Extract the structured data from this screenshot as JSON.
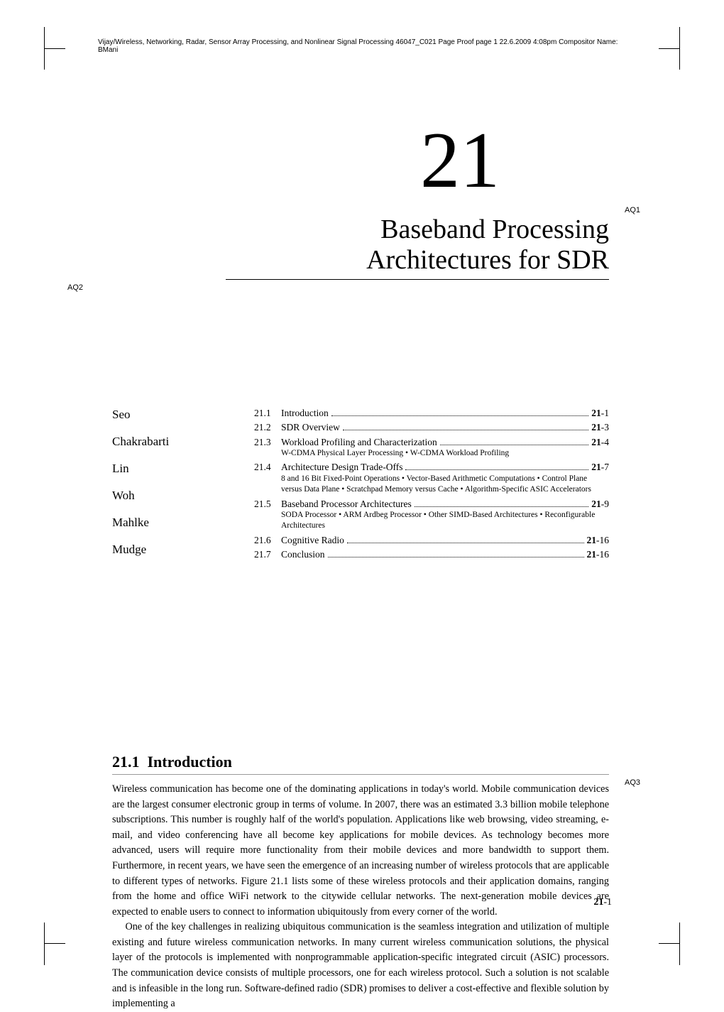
{
  "runningHead": "Vijay/Wireless, Networking, Radar, Sensor Array Processing, and Nonlinear Signal Processing   46047_C021   Page Proof   page 1   22.6.2009   4:08pm   Compositor Name: BMani",
  "chapter": {
    "number": "21",
    "titleLine1": "Baseband Processing",
    "titleLine2": "Architectures for SDR"
  },
  "aq": {
    "aq1": "AQ1",
    "aq2": "AQ2",
    "aq3": "AQ3"
  },
  "authors": [
    "Seo",
    "Chakrabarti",
    "Lin",
    "Woh",
    "Mahlke",
    "Mudge"
  ],
  "toc": [
    {
      "num": "21.1",
      "title": "Introduction",
      "page": "21-1",
      "sub": ""
    },
    {
      "num": "21.2",
      "title": "SDR Overview",
      "page": "21-3",
      "sub": ""
    },
    {
      "num": "21.3",
      "title": "Workload Profiling and Characterization",
      "page": "21-4",
      "sub": "W-CDMA Physical Layer Processing  •  W-CDMA Workload Profiling"
    },
    {
      "num": "21.4",
      "title": "Architecture Design Trade-Offs",
      "page": "21-7",
      "sub": "8 and 16 Bit Fixed-Point Operations  •  Vector-Based Arithmetic Computations  •  Control Plane versus Data Plane  •  Scratchpad Memory versus Cache  •  Algorithm-Specific ASIC Accelerators"
    },
    {
      "num": "21.5",
      "title": "Baseband Processor Architectures",
      "page": "21-9",
      "sub": "SODA Processor  •  ARM Ardbeg Processor  •  Other SIMD-Based Architectures  •  Reconfigurable Architectures"
    },
    {
      "num": "21.6",
      "title": "Cognitive Radio",
      "page": "21-16",
      "sub": ""
    },
    {
      "num": "21.7",
      "title": "Conclusion",
      "page": "21-16",
      "sub": ""
    }
  ],
  "section": {
    "num": "21.1",
    "title": "Introduction"
  },
  "para1": "Wireless communication has become one of the dominating applications in today's world. Mobile communication devices are the largest consumer electronic group in terms of volume. In 2007, there was an estimated 3.3 billion mobile telephone subscriptions. This number is roughly half of the world's population. Applications like web browsing, video streaming, e-mail, and video conferencing have all become key applications for mobile devices. As technology becomes more advanced, users will require more functionality from their mobile devices and more bandwidth to support them. Furthermore, in recent years, we have seen the emergence of an increasing number of wireless protocols that are applicable to different types of networks. Figure 21.1 lists some of these wireless protocols and their application domains, ranging from the home and office WiFi network to the citywide cellular networks. The next-generation mobile devices are expected to enable users to connect to information ubiquitously from every corner of the world.",
  "para2": "One of the key challenges in realizing ubiquitous communication is the seamless integration and utilization of multiple existing and future wireless communication networks. In many current wireless communication solutions, the physical layer of the protocols is implemented with nonprogrammable application-specific integrated circuit (ASIC) processors. The communication device consists of multiple processors, one for each wireless protocol. Such a solution is not scalable and is infeasible in the long run. Software-defined radio (SDR) promises to deliver a cost-effective and flexible solution by implementing a",
  "footerPage": {
    "chap": "21",
    "page": "-1"
  },
  "style": {
    "pageWidth": 1020,
    "pageHeight": 1397,
    "textColor": "#000000",
    "background": "#ffffff",
    "chapNumFontSize": 112,
    "chapTitleFontSize": 38,
    "authorFontSize": 17,
    "tocFontSize": 13.5,
    "tocSubFontSize": 11.5,
    "sectionHeadFontSize": 22,
    "bodyFontSize": 14.2,
    "bodyLineHeight": 1.52,
    "runningHeadFontSize": 10,
    "footerFontSize": 14,
    "ruleColor": "#999999",
    "cropColor": "#000000"
  }
}
